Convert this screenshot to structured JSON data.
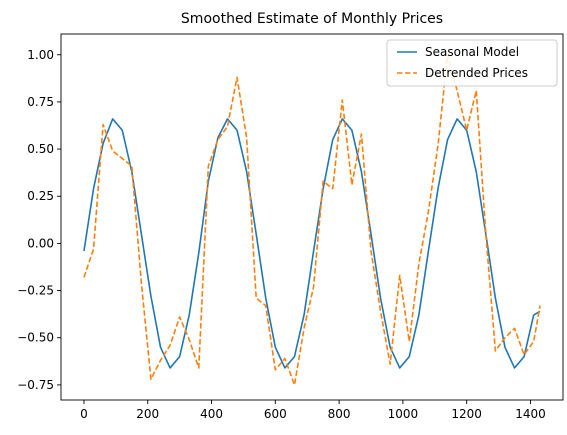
{
  "chart_data": {
    "type": "line",
    "title": "Smoothed Estimate of Monthly Prices",
    "xlabel": "",
    "ylabel": "",
    "xlim": [
      -72,
      1502
    ],
    "ylim": [
      -0.83,
      1.11
    ],
    "xticks": [
      0,
      200,
      400,
      600,
      800,
      1000,
      1200,
      1400
    ],
    "yticks": [
      -0.75,
      -0.5,
      -0.25,
      0.0,
      0.25,
      0.5,
      0.75,
      1.0
    ],
    "ytick_labels": [
      "−0.75",
      "−0.50",
      "−0.25",
      "0.00",
      "0.25",
      "0.50",
      "0.75",
      "1.00"
    ],
    "legend_position": "top-right",
    "grid": false,
    "series": [
      {
        "name": "Seasonal Model",
        "color": "#1f77b4",
        "style": "solid",
        "x": [
          0,
          30,
          60,
          90,
          120,
          150,
          180,
          210,
          240,
          270,
          300,
          330,
          360,
          390,
          420,
          450,
          480,
          510,
          540,
          570,
          600,
          630,
          660,
          690,
          720,
          750,
          780,
          810,
          840,
          870,
          900,
          930,
          960,
          990,
          1020,
          1050,
          1080,
          1110,
          1140,
          1170,
          1200,
          1230,
          1260,
          1290,
          1320,
          1350,
          1380,
          1410,
          1430
        ],
        "y": [
          -0.04,
          0.29,
          0.53,
          0.66,
          0.6,
          0.38,
          0.05,
          -0.28,
          -0.55,
          -0.66,
          -0.6,
          -0.38,
          -0.05,
          0.33,
          0.56,
          0.66,
          0.6,
          0.38,
          0.05,
          -0.29,
          -0.55,
          -0.66,
          -0.6,
          -0.38,
          -0.04,
          0.29,
          0.55,
          0.66,
          0.6,
          0.38,
          0.05,
          -0.29,
          -0.55,
          -0.66,
          -0.6,
          -0.38,
          -0.04,
          0.29,
          0.55,
          0.66,
          0.6,
          0.38,
          0.05,
          -0.29,
          -0.55,
          -0.66,
          -0.6,
          -0.38,
          -0.36
        ]
      },
      {
        "name": "Detrended Prices",
        "color": "#ff7f0e",
        "style": "dashed",
        "x": [
          0,
          30,
          60,
          90,
          120,
          150,
          180,
          210,
          240,
          270,
          300,
          330,
          360,
          390,
          420,
          450,
          480,
          510,
          540,
          570,
          600,
          630,
          660,
          690,
          720,
          750,
          780,
          810,
          840,
          870,
          900,
          930,
          960,
          990,
          1020,
          1050,
          1080,
          1110,
          1140,
          1170,
          1200,
          1230,
          1260,
          1290,
          1320,
          1350,
          1380,
          1410,
          1430
        ],
        "y": [
          -0.18,
          -0.03,
          0.63,
          0.49,
          0.45,
          0.41,
          -0.21,
          -0.72,
          -0.62,
          -0.54,
          -0.39,
          -0.51,
          -0.66,
          0.41,
          0.55,
          0.62,
          0.88,
          0.56,
          -0.29,
          -0.33,
          -0.67,
          -0.61,
          -0.75,
          -0.45,
          -0.23,
          0.33,
          0.29,
          0.76,
          0.31,
          0.58,
          -0.04,
          -0.36,
          -0.64,
          -0.17,
          -0.52,
          -0.11,
          0.17,
          0.52,
          1.0,
          0.81,
          0.6,
          0.81,
          0.05,
          -0.57,
          -0.5,
          -0.45,
          -0.59,
          -0.52,
          -0.33
        ]
      }
    ]
  }
}
